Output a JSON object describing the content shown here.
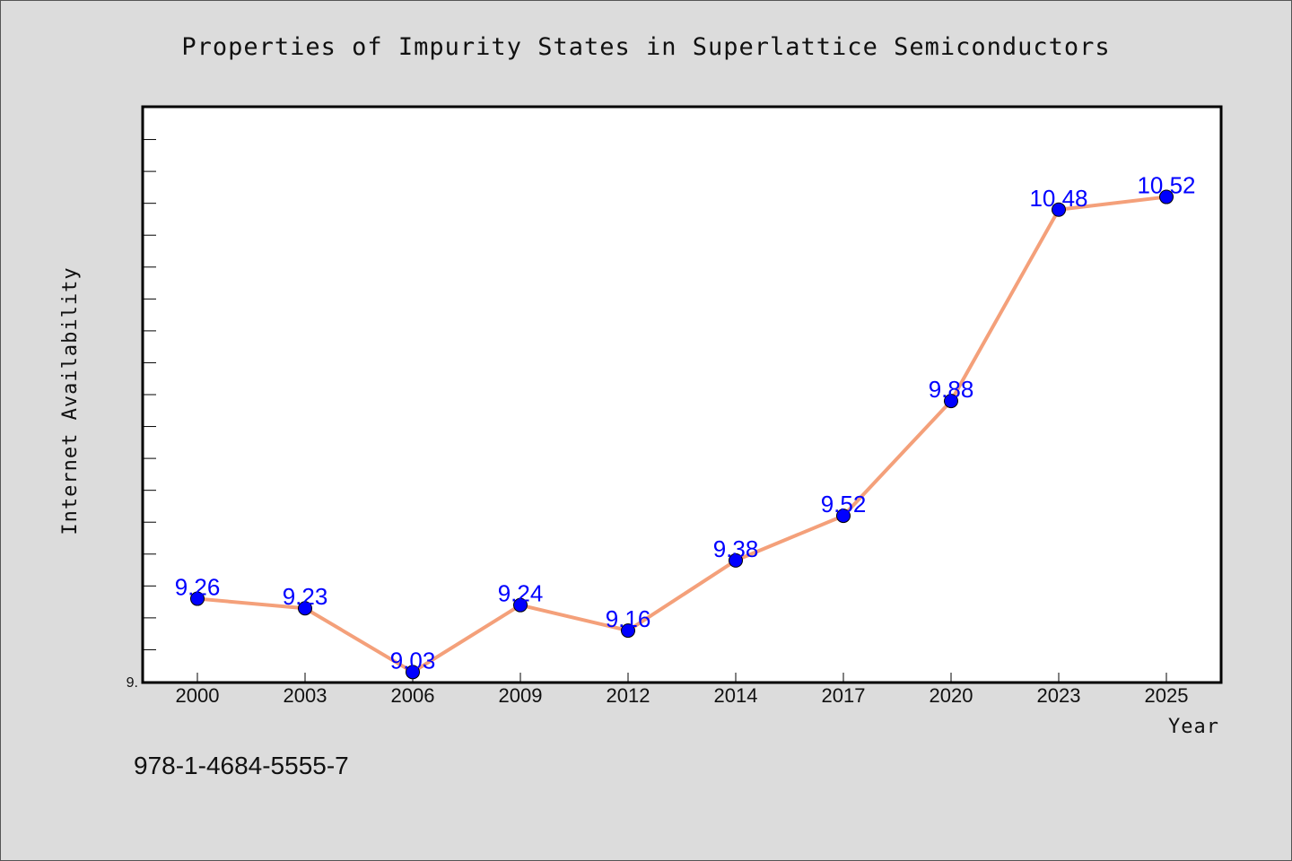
{
  "chart_data": {
    "type": "line",
    "title": "Properties of Impurity States in Superlattice Semiconductors",
    "xlabel": "Year",
    "ylabel": "Internet Availability",
    "categories": [
      "2000",
      "2003",
      "2006",
      "2009",
      "2012",
      "2014",
      "2017",
      "2020",
      "2023",
      "2025"
    ],
    "values": [
      9.26,
      9.23,
      9.03,
      9.24,
      9.16,
      9.38,
      9.52,
      9.88,
      10.48,
      10.52
    ],
    "data_labels": [
      "9.26",
      "9.23",
      "9.03",
      "9.24",
      "9.16",
      "9.38",
      "9.52",
      "9.88",
      "10.48",
      "10.52"
    ],
    "ylim": [
      9.0,
      10.8
    ],
    "y_tick_labels": [
      "9."
    ],
    "grid": false,
    "line_color": "#f4a07a",
    "marker_color": "#0000ff",
    "label_color": "#0000ff"
  },
  "footer": {
    "isbn": "978-1-4684-5555-7"
  }
}
